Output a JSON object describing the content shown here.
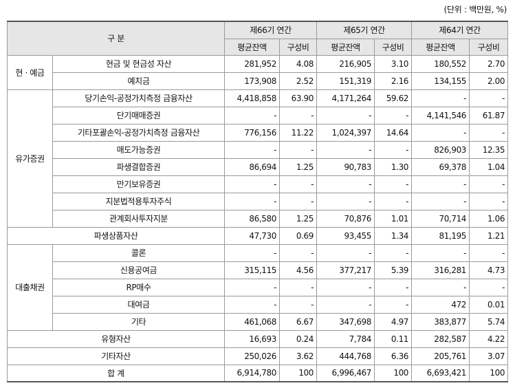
{
  "unit_note": "(단위 : 백만원, %)",
  "header": {
    "category": "구   분",
    "periods": [
      "제66기 연간",
      "제65기 연간",
      "제64기 연간"
    ],
    "avg_balance": "평균잔액",
    "ratio": "구성비"
  },
  "rows": [
    {
      "group": "현 · 예금",
      "item": "현금 및 현금성 자산",
      "v": [
        "281,952",
        "4.08",
        "216,905",
        "3.10",
        "180,552",
        "2.70"
      ]
    },
    {
      "group": "",
      "item": "예치금",
      "v": [
        "173,908",
        "2.52",
        "151,319",
        "2.16",
        "134,155",
        "2.00"
      ]
    },
    {
      "group": "유가증권",
      "item": "당기손익-공정가치측정 금융자산",
      "v": [
        "4,418,858",
        "63.90",
        "4,171,264",
        "59.62",
        "-",
        "-"
      ]
    },
    {
      "group": "",
      "item": "단기매매증권",
      "v": [
        "-",
        "-",
        "-",
        "-",
        "4,141,546",
        "61.87"
      ]
    },
    {
      "group": "",
      "item": "기타포괄손익-공정가치측정 금융자산",
      "v": [
        "776,156",
        "11.22",
        "1,024,397",
        "14.64",
        "-",
        "-"
      ]
    },
    {
      "group": "",
      "item": "매도가능증권",
      "v": [
        "-",
        "-",
        "-",
        "-",
        "826,903",
        "12.35"
      ]
    },
    {
      "group": "",
      "item": "파생결합증권",
      "v": [
        "86,694",
        "1.25",
        "90,783",
        "1.30",
        "69,378",
        "1.04"
      ]
    },
    {
      "group": "",
      "item": "만기보유증권",
      "v": [
        "-",
        "-",
        "-",
        "-",
        "-",
        "-"
      ]
    },
    {
      "group": "",
      "item": "지분법적용투자주식",
      "v": [
        "-",
        "-",
        "-",
        "-",
        "-",
        "-"
      ]
    },
    {
      "group": "",
      "item": "관계회사투자지분",
      "v": [
        "86,580",
        "1.25",
        "70,876",
        "1.01",
        "70,714",
        "1.06"
      ]
    },
    {
      "group": "",
      "item": "파생상품자산",
      "v": [
        "47,730",
        "0.69",
        "93,455",
        "1.34",
        "81,195",
        "1.21"
      ]
    },
    {
      "group": "대출채권",
      "item": "콜론",
      "v": [
        "-",
        "-",
        "-",
        "-",
        "-",
        "-"
      ]
    },
    {
      "group": "",
      "item": "신용공여금",
      "v": [
        "315,115",
        "4.56",
        "377,217",
        "5.39",
        "316,281",
        "4.73"
      ]
    },
    {
      "group": "",
      "item": "RP매수",
      "v": [
        "-",
        "-",
        "-",
        "-",
        "-",
        "-"
      ]
    },
    {
      "group": "",
      "item": "대여금",
      "v": [
        "-",
        "-",
        "-",
        "-",
        "472",
        "0.01"
      ]
    },
    {
      "group": "",
      "item": "기타",
      "v": [
        "461,068",
        "6.67",
        "347,698",
        "4.97",
        "383,877",
        "5.74"
      ]
    },
    {
      "group": "",
      "item": "유형자산",
      "v": [
        "16,693",
        "0.24",
        "7,784",
        "0.11",
        "282,587",
        "4.22"
      ]
    },
    {
      "group": "",
      "item": "기타자산",
      "v": [
        "250,026",
        "3.62",
        "444,768",
        "6.36",
        "205,761",
        "3.07"
      ]
    },
    {
      "group": "",
      "item": "합   계",
      "v": [
        "6,914,780",
        "100",
        "6,996,467",
        "100",
        "6,693,421",
        "100"
      ]
    }
  ]
}
